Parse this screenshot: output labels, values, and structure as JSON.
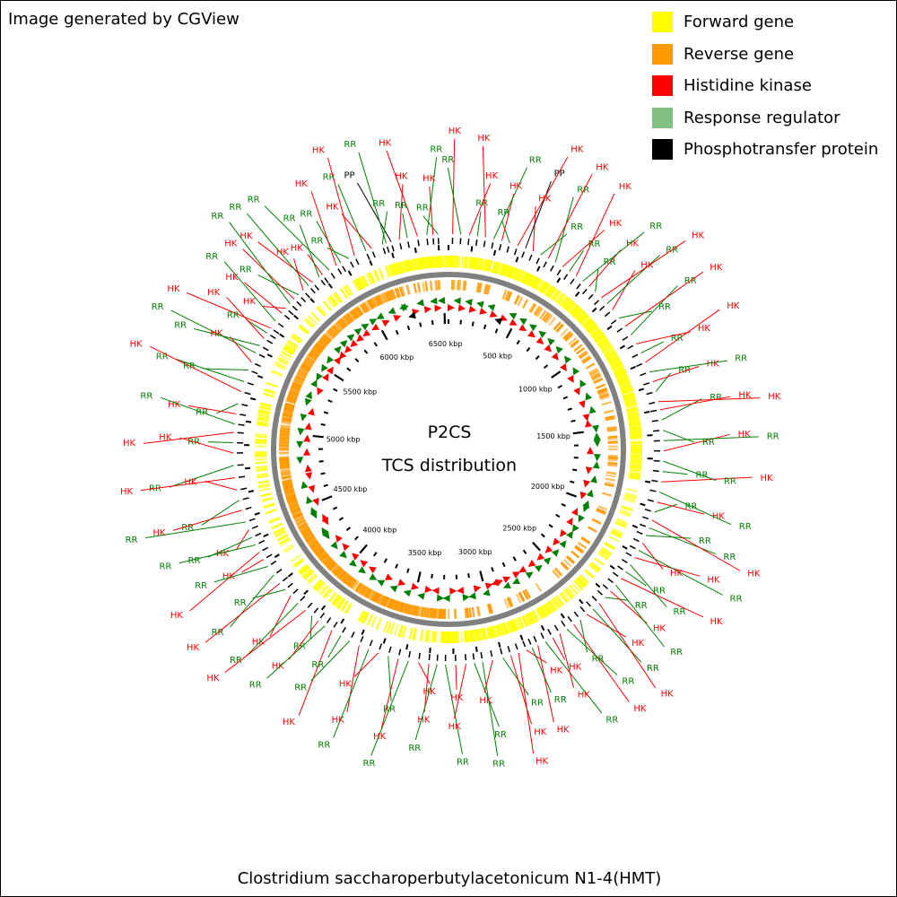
{
  "credit": "Image generated by CGView",
  "center_title": "P2CS",
  "center_subtitle": "TCS distribution",
  "organism": "Clostridium saccharoperbutylacetonicum N1-4(HMT)",
  "legend": [
    {
      "label": "Forward gene",
      "color": "#ffff00"
    },
    {
      "label": "Reverse gene",
      "color": "#ff9900"
    },
    {
      "label": "Histidine kinase",
      "color": "#ff0000"
    },
    {
      "label": "Response regulator",
      "color": "#80c080"
    },
    {
      "label": "Phosphotransfer protein",
      "color": "#000000"
    }
  ],
  "colors": {
    "forward": "#ffff00",
    "reverse": "#ff9900",
    "hk": "#ff0000",
    "rr": "#008000",
    "pp": "#000000",
    "backbone": "#808080"
  },
  "genome": {
    "length_kbp": 6530,
    "tick_labels": [
      {
        "kbp": 500,
        "label": "500 kbp"
      },
      {
        "kbp": 1000,
        "label": "1000 kbp"
      },
      {
        "kbp": 1500,
        "label": "1500 kbp"
      },
      {
        "kbp": 2000,
        "label": "2000 kbp"
      },
      {
        "kbp": 2500,
        "label": "2500 kbp"
      },
      {
        "kbp": 3000,
        "label": "3000 kbp"
      },
      {
        "kbp": 3500,
        "label": "3500 kbp"
      },
      {
        "kbp": 4000,
        "label": "4000 kbp"
      },
      {
        "kbp": 4500,
        "label": "4500 kbp"
      },
      {
        "kbp": 5000,
        "label": "5000 kbp"
      },
      {
        "kbp": 5500,
        "label": "5500 kbp"
      },
      {
        "kbp": 6000,
        "label": "6000 kbp"
      },
      {
        "kbp": 6500,
        "label": "6500 kbp"
      }
    ]
  },
  "features": [
    {
      "kbp": 6480,
      "type": "RR"
    },
    {
      "kbp": 6455,
      "type": "HK"
    },
    {
      "kbp": 6425,
      "type": "RR"
    },
    {
      "kbp": 6380,
      "type": "HK"
    },
    {
      "kbp": 6330,
      "type": "RR"
    },
    {
      "kbp": 6290,
      "type": "HK"
    },
    {
      "kbp": 6250,
      "type": "PP"
    },
    {
      "kbp": 6225,
      "type": "RR"
    },
    {
      "kbp": 6205,
      "type": "RR"
    },
    {
      "kbp": 6150,
      "type": "HK"
    },
    {
      "kbp": 6120,
      "type": "RR"
    },
    {
      "kbp": 6060,
      "type": "HK"
    },
    {
      "kbp": 6030,
      "type": "RR"
    },
    {
      "kbp": 5985,
      "type": "RR"
    },
    {
      "kbp": 5960,
      "type": "HK"
    },
    {
      "kbp": 5920,
      "type": "RR"
    },
    {
      "kbp": 5880,
      "type": "HK"
    },
    {
      "kbp": 5860,
      "type": "RR"
    },
    {
      "kbp": 5820,
      "type": "HK"
    },
    {
      "kbp": 5795,
      "type": "RR"
    },
    {
      "kbp": 5760,
      "type": "HK"
    },
    {
      "kbp": 5730,
      "type": "RR"
    },
    {
      "kbp": 5700,
      "type": "HK"
    },
    {
      "kbp": 5670,
      "type": "RR"
    },
    {
      "kbp": 5640,
      "type": "HK"
    },
    {
      "kbp": 5610,
      "type": "HK"
    },
    {
      "kbp": 5560,
      "type": "RR"
    },
    {
      "kbp": 5520,
      "type": "HK"
    },
    {
      "kbp": 5490,
      "type": "RR"
    },
    {
      "kbp": 5460,
      "type": "HK"
    },
    {
      "kbp": 5420,
      "type": "RR"
    },
    {
      "kbp": 5380,
      "type": "RR"
    },
    {
      "kbp": 5330,
      "type": "HK"
    },
    {
      "kbp": 5290,
      "type": "RR"
    },
    {
      "kbp": 5230,
      "type": "RR"
    },
    {
      "kbp": 5180,
      "type": "HK"
    },
    {
      "kbp": 5120,
      "type": "RR"
    },
    {
      "kbp": 5070,
      "type": "HK"
    },
    {
      "kbp": 5020,
      "type": "RR"
    },
    {
      "kbp": 4980,
      "type": "HK"
    },
    {
      "kbp": 4930,
      "type": "RR"
    },
    {
      "kbp": 4880,
      "type": "HK"
    },
    {
      "kbp": 4820,
      "type": "RR"
    },
    {
      "kbp": 4760,
      "type": "HK"
    },
    {
      "kbp": 4700,
      "type": "HK"
    },
    {
      "kbp": 4650,
      "type": "RR"
    },
    {
      "kbp": 4600,
      "type": "HK"
    },
    {
      "kbp": 4540,
      "type": "RR"
    },
    {
      "kbp": 4500,
      "type": "HK"
    },
    {
      "kbp": 4460,
      "type": "RR"
    },
    {
      "kbp": 4420,
      "type": "RR"
    },
    {
      "kbp": 4380,
      "type": "HK"
    },
    {
      "kbp": 4340,
      "type": "HK"
    },
    {
      "kbp": 4300,
      "type": "RR"
    },
    {
      "kbp": 4250,
      "type": "RR"
    },
    {
      "kbp": 4200,
      "type": "HK"
    },
    {
      "kbp": 4160,
      "type": "RR"
    },
    {
      "kbp": 4120,
      "type": "HK"
    },
    {
      "kbp": 4070,
      "type": "RR"
    },
    {
      "kbp": 4020,
      "type": "HK"
    },
    {
      "kbp": 3980,
      "type": "RR"
    },
    {
      "kbp": 3940,
      "type": "HK"
    },
    {
      "kbp": 3900,
      "type": "RR"
    },
    {
      "kbp": 3860,
      "type": "HK"
    },
    {
      "kbp": 3810,
      "type": "RR"
    },
    {
      "kbp": 3760,
      "type": "RR"
    },
    {
      "kbp": 3710,
      "type": "HK"
    },
    {
      "kbp": 3660,
      "type": "RR"
    },
    {
      "kbp": 3610,
      "type": "HK"
    },
    {
      "kbp": 3560,
      "type": "RR"
    },
    {
      "kbp": 3510,
      "type": "HK"
    },
    {
      "kbp": 3460,
      "type": "RR"
    },
    {
      "kbp": 3410,
      "type": "HK"
    },
    {
      "kbp": 3360,
      "type": "HK"
    },
    {
      "kbp": 3320,
      "type": "RR"
    },
    {
      "kbp": 3280,
      "type": "RR"
    },
    {
      "kbp": 3230,
      "type": "HK"
    },
    {
      "kbp": 3180,
      "type": "HK"
    },
    {
      "kbp": 3140,
      "type": "RR"
    },
    {
      "kbp": 3100,
      "type": "RR"
    },
    {
      "kbp": 3050,
      "type": "HK"
    },
    {
      "kbp": 3000,
      "type": "RR"
    },
    {
      "kbp": 2960,
      "type": "HK"
    },
    {
      "kbp": 2920,
      "type": "HK"
    },
    {
      "kbp": 2880,
      "type": "HK"
    },
    {
      "kbp": 2850,
      "type": "RR"
    },
    {
      "kbp": 2820,
      "type": "HK"
    },
    {
      "kbp": 2780,
      "type": "RR"
    },
    {
      "kbp": 2740,
      "type": "HK"
    },
    {
      "kbp": 2700,
      "type": "HK"
    },
    {
      "kbp": 2660,
      "type": "RR"
    },
    {
      "kbp": 2620,
      "type": "HK"
    },
    {
      "kbp": 2580,
      "type": "RR"
    },
    {
      "kbp": 2540,
      "type": "HK"
    },
    {
      "kbp": 2500,
      "type": "RR"
    },
    {
      "kbp": 2460,
      "type": "HK"
    },
    {
      "kbp": 2420,
      "type": "RR"
    },
    {
      "kbp": 2380,
      "type": "HK"
    },
    {
      "kbp": 2340,
      "type": "RR"
    },
    {
      "kbp": 2300,
      "type": "HK"
    },
    {
      "kbp": 2260,
      "type": "RR"
    },
    {
      "kbp": 2220,
      "type": "RR"
    },
    {
      "kbp": 2180,
      "type": "HK"
    },
    {
      "kbp": 2140,
      "type": "RR"
    },
    {
      "kbp": 2100,
      "type": "HK"
    },
    {
      "kbp": 2060,
      "type": "RR"
    },
    {
      "kbp": 2020,
      "type": "RR"
    },
    {
      "kbp": 1980,
      "type": "HK"
    },
    {
      "kbp": 1940,
      "type": "RR"
    },
    {
      "kbp": 1890,
      "type": "HK"
    },
    {
      "kbp": 1840,
      "type": "RR"
    },
    {
      "kbp": 1790,
      "type": "HK"
    },
    {
      "kbp": 1740,
      "type": "RR"
    },
    {
      "kbp": 1690,
      "type": "RR"
    },
    {
      "kbp": 1640,
      "type": "HK"
    },
    {
      "kbp": 1590,
      "type": "RR"
    },
    {
      "kbp": 1540,
      "type": "RR"
    },
    {
      "kbp": 1490,
      "type": "RR"
    },
    {
      "kbp": 1440,
      "type": "HK"
    },
    {
      "kbp": 1400,
      "type": "HK"
    },
    {
      "kbp": 1350,
      "type": "RR"
    },
    {
      "kbp": 1300,
      "type": "HK"
    },
    {
      "kbp": 1250,
      "type": "RR"
    },
    {
      "kbp": 1200,
      "type": "HK"
    },
    {
      "kbp": 1150,
      "type": "RR"
    },
    {
      "kbp": 1100,
      "type": "HK"
    },
    {
      "kbp": 1050,
      "type": "RR"
    },
    {
      "kbp": 1000,
      "type": "HK"
    },
    {
      "kbp": 950,
      "type": "RR"
    },
    {
      "kbp": 900,
      "type": "HK"
    },
    {
      "kbp": 860,
      "type": "RR"
    },
    {
      "kbp": 820,
      "type": "HK"
    },
    {
      "kbp": 780,
      "type": "RR"
    },
    {
      "kbp": 740,
      "type": "HK"
    },
    {
      "kbp": 700,
      "type": "RR"
    },
    {
      "kbp": 660,
      "type": "HK"
    },
    {
      "kbp": 620,
      "type": "RR"
    },
    {
      "kbp": 580,
      "type": "HK"
    },
    {
      "kbp": 540,
      "type": "RR"
    },
    {
      "kbp": 500,
      "type": "HK"
    },
    {
      "kbp": 460,
      "type": "RR"
    },
    {
      "kbp": 420,
      "type": "HK"
    },
    {
      "kbp": 380,
      "type": "PP"
    },
    {
      "kbp": 340,
      "type": "HK"
    },
    {
      "kbp": 300,
      "type": "RR"
    },
    {
      "kbp": 260,
      "type": "HK"
    },
    {
      "kbp": 220,
      "type": "RR"
    },
    {
      "kbp": 180,
      "type": "HK"
    },
    {
      "kbp": 140,
      "type": "RR"
    },
    {
      "kbp": 100,
      "type": "HK"
    },
    {
      "kbp": 60,
      "type": "RR"
    },
    {
      "kbp": 20,
      "type": "HK"
    }
  ]
}
